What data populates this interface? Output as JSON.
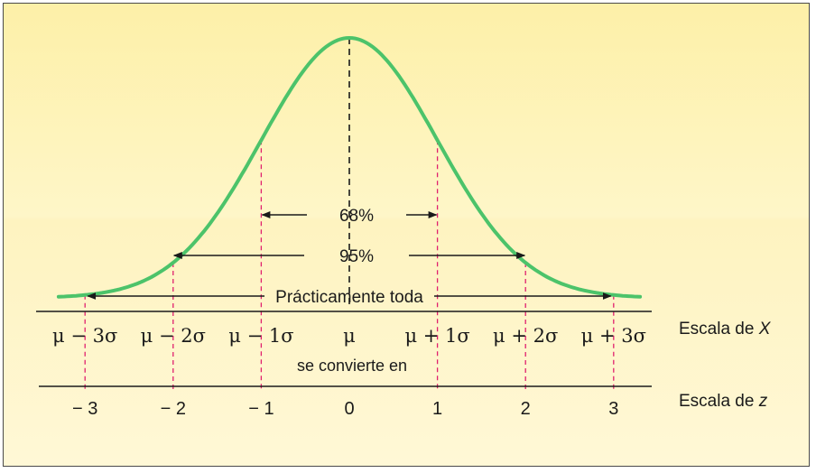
{
  "chart_data": {
    "type": "line",
    "title": "",
    "series": [
      {
        "name": "",
        "color": "#4cc36a",
        "x": [
          -3.3,
          -3.0,
          -2.5,
          -2.0,
          -1.5,
          -1.0,
          -0.5,
          0.0,
          0.5,
          1.0,
          1.5,
          2.0,
          2.5,
          3.0,
          3.3
        ],
        "y": [
          0.0017,
          0.0044,
          0.0175,
          0.054,
          0.1295,
          0.242,
          0.352,
          0.3989,
          0.352,
          0.242,
          0.1295,
          0.054,
          0.0175,
          0.0044,
          0.0017
        ]
      }
    ],
    "xlim": [
      -3.35,
      3.4
    ],
    "ylim": [
      0,
      0.42
    ],
    "mean_line": {
      "x": 0,
      "style": "dashed",
      "color": "#1a1a1a"
    },
    "sigma_markers": {
      "x": [
        -3,
        -2,
        -1,
        1,
        2,
        3
      ],
      "style": "dashed",
      "color": "#e0206e"
    },
    "intervals": [
      {
        "label": "68%",
        "from": -1,
        "to": 1
      },
      {
        "label": "95%",
        "from": -2,
        "to": 2
      },
      {
        "label": "Prácticamente toda",
        "from": -3,
        "to": 3
      }
    ],
    "x_scale": {
      "name": "Escala de ",
      "var": "X",
      "ticks": [
        -3,
        -2,
        -1,
        0,
        1,
        2,
        3
      ],
      "labels": [
        "μ − 3σ",
        "μ − 2σ",
        "μ − 1σ",
        "μ",
        "μ + 1σ",
        "μ + 2σ",
        "μ + 3σ"
      ]
    },
    "connector_text": "se convierte en",
    "z_scale": {
      "name": "Escala de ",
      "var": "z",
      "ticks": [
        -3,
        -2,
        -1,
        0,
        1,
        2,
        3
      ],
      "labels": [
        "− 3",
        "− 2",
        "− 1",
        "0",
        "1",
        "2",
        "3"
      ]
    },
    "grid": false
  }
}
